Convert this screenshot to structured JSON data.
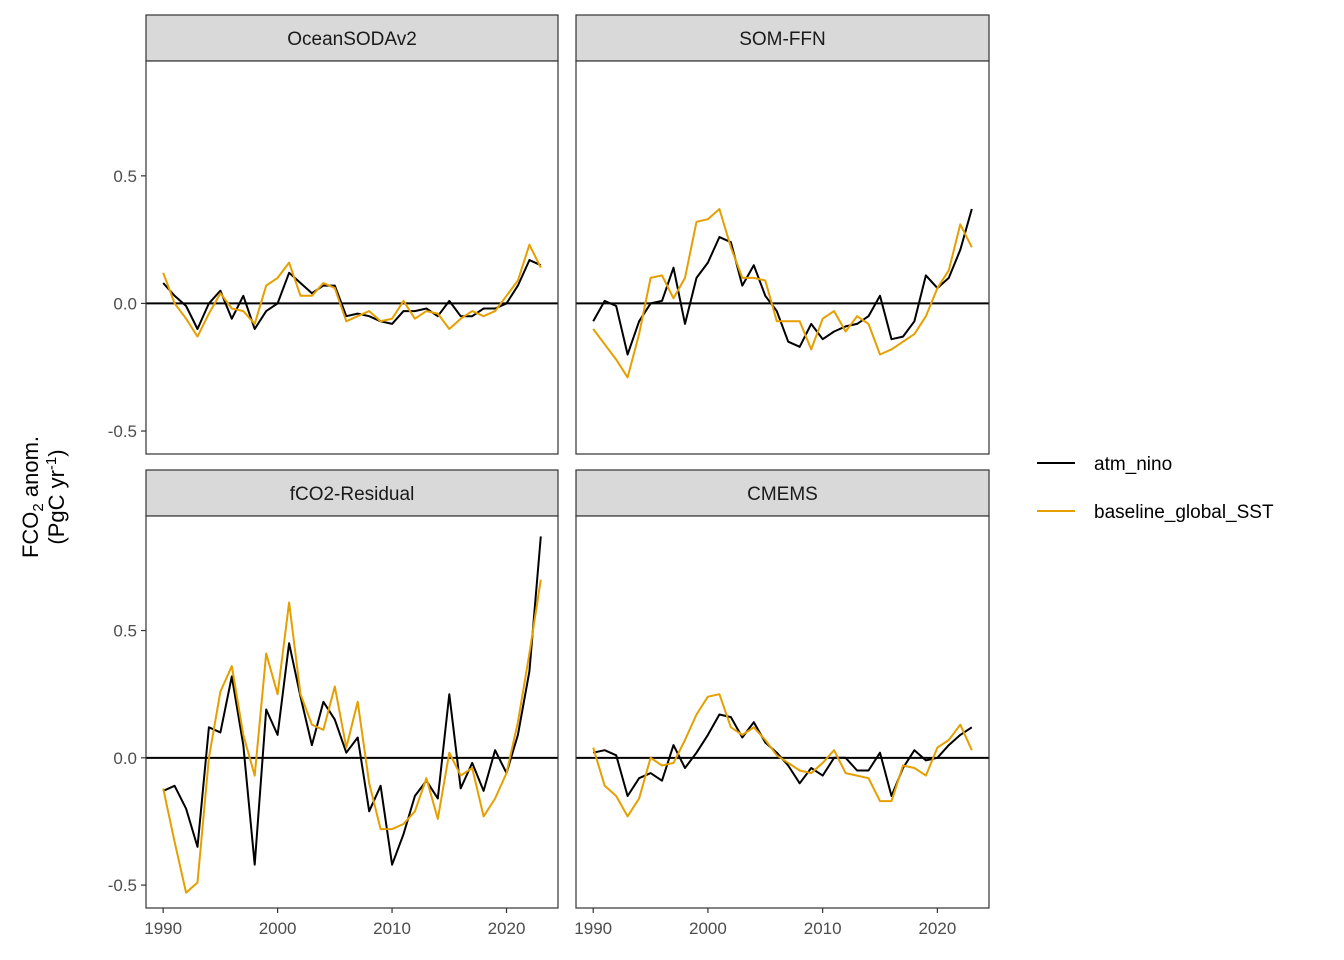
{
  "chart_data": {
    "type": "line",
    "layout": "facet 2x2",
    "ylabel_line1": "FCO",
    "ylabel_sub": "2",
    "ylabel_line1_rest": " anom.",
    "ylabel_line2": "(PgC yr",
    "ylabel_sup": "-1",
    "ylabel_line2_rest": ")",
    "xlim": [
      1988.5,
      2024.5
    ],
    "ylim": [
      -0.59,
      0.95
    ],
    "xticks": [
      1990,
      2000,
      2010,
      2020
    ],
    "yticks": [
      -0.5,
      0.0,
      0.5
    ],
    "ytick_labels": [
      "-0.5",
      "0.0",
      "0.5"
    ],
    "reference_line_y": 0,
    "colors": {
      "atm_nino": "#000000",
      "baseline_global_SST": "#E69F00"
    },
    "legend": {
      "position": "right",
      "entries": [
        "atm_nino",
        "baseline_global_SST"
      ]
    },
    "x": [
      1990,
      1991,
      1992,
      1993,
      1994,
      1995,
      1996,
      1997,
      1998,
      1999,
      2000,
      2001,
      2002,
      2003,
      2004,
      2005,
      2006,
      2007,
      2008,
      2009,
      2010,
      2011,
      2012,
      2013,
      2014,
      2015,
      2016,
      2017,
      2018,
      2019,
      2020,
      2021,
      2022,
      2023
    ],
    "panels": [
      {
        "title": "OceanSODAv2",
        "series": [
          {
            "name": "atm_nino",
            "values": [
              0.08,
              0.03,
              -0.01,
              -0.1,
              0.0,
              0.05,
              -0.06,
              0.03,
              -0.1,
              -0.03,
              0.0,
              0.12,
              0.08,
              0.04,
              0.07,
              0.07,
              -0.05,
              -0.04,
              -0.05,
              -0.07,
              -0.08,
              -0.03,
              -0.03,
              -0.02,
              -0.05,
              0.01,
              -0.05,
              -0.05,
              -0.02,
              -0.02,
              0.0,
              0.07,
              0.17,
              0.15
            ]
          },
          {
            "name": "baseline_global_SST",
            "values": [
              0.12,
              0.0,
              -0.06,
              -0.13,
              -0.04,
              0.04,
              -0.02,
              -0.03,
              -0.08,
              0.07,
              0.1,
              0.16,
              0.03,
              0.03,
              0.08,
              0.06,
              -0.07,
              -0.05,
              -0.03,
              -0.07,
              -0.06,
              0.01,
              -0.06,
              -0.03,
              -0.04,
              -0.1,
              -0.06,
              -0.03,
              -0.05,
              -0.03,
              0.03,
              0.09,
              0.23,
              0.14
            ]
          }
        ]
      },
      {
        "title": "SOM-FFN",
        "series": [
          {
            "name": "atm_nino",
            "values": [
              -0.07,
              0.01,
              -0.01,
              -0.2,
              -0.07,
              0.0,
              0.01,
              0.14,
              -0.08,
              0.1,
              0.16,
              0.26,
              0.24,
              0.07,
              0.15,
              0.03,
              -0.03,
              -0.15,
              -0.17,
              -0.08,
              -0.14,
              -0.11,
              -0.09,
              -0.08,
              -0.05,
              0.03,
              -0.14,
              -0.13,
              -0.07,
              0.11,
              0.06,
              0.1,
              0.21,
              0.37
            ]
          },
          {
            "name": "baseline_global_SST",
            "values": [
              -0.1,
              -0.16,
              -0.22,
              -0.29,
              -0.12,
              0.1,
              0.11,
              0.02,
              0.1,
              0.32,
              0.33,
              0.37,
              0.22,
              0.1,
              0.1,
              0.09,
              -0.07,
              -0.07,
              -0.07,
              -0.18,
              -0.06,
              -0.03,
              -0.11,
              -0.05,
              -0.08,
              -0.2,
              -0.18,
              -0.15,
              -0.12,
              -0.05,
              0.06,
              0.13,
              0.31,
              0.22
            ]
          }
        ]
      },
      {
        "title": "fCO2-Residual",
        "series": [
          {
            "name": "atm_nino",
            "values": [
              -0.13,
              -0.11,
              -0.2,
              -0.35,
              0.12,
              0.1,
              0.32,
              0.05,
              -0.42,
              0.19,
              0.09,
              0.45,
              0.24,
              0.05,
              0.22,
              0.15,
              0.02,
              0.08,
              -0.21,
              -0.11,
              -0.42,
              -0.3,
              -0.15,
              -0.09,
              -0.16,
              0.25,
              -0.12,
              -0.02,
              -0.13,
              0.03,
              -0.06,
              0.09,
              0.34,
              0.87
            ]
          },
          {
            "name": "baseline_global_SST",
            "values": [
              -0.12,
              -0.33,
              -0.53,
              -0.49,
              0.0,
              0.26,
              0.36,
              0.09,
              -0.07,
              0.41,
              0.25,
              0.61,
              0.25,
              0.13,
              0.11,
              0.28,
              0.04,
              0.22,
              -0.1,
              -0.28,
              -0.28,
              -0.26,
              -0.21,
              -0.08,
              -0.24,
              0.02,
              -0.07,
              -0.04,
              -0.23,
              -0.16,
              -0.06,
              0.14,
              0.41,
              0.7
            ]
          }
        ]
      },
      {
        "title": "CMEMS",
        "series": [
          {
            "name": "atm_nino",
            "values": [
              0.02,
              0.03,
              0.01,
              -0.15,
              -0.08,
              -0.06,
              -0.09,
              0.05,
              -0.04,
              0.02,
              0.09,
              0.17,
              0.16,
              0.08,
              0.14,
              0.06,
              0.02,
              -0.03,
              -0.1,
              -0.04,
              -0.07,
              0.0,
              0.0,
              -0.05,
              -0.05,
              0.02,
              -0.15,
              -0.04,
              0.03,
              -0.01,
              0.0,
              0.05,
              0.09,
              0.12
            ]
          },
          {
            "name": "baseline_global_SST",
            "values": [
              0.04,
              -0.11,
              -0.15,
              -0.23,
              -0.16,
              0.0,
              -0.03,
              -0.02,
              0.07,
              0.17,
              0.24,
              0.25,
              0.12,
              0.09,
              0.12,
              0.07,
              0.01,
              -0.02,
              -0.05,
              -0.06,
              -0.02,
              0.03,
              -0.06,
              -0.07,
              -0.08,
              -0.17,
              -0.17,
              -0.03,
              -0.04,
              -0.07,
              0.04,
              0.07,
              0.13,
              0.03
            ]
          }
        ]
      }
    ]
  }
}
